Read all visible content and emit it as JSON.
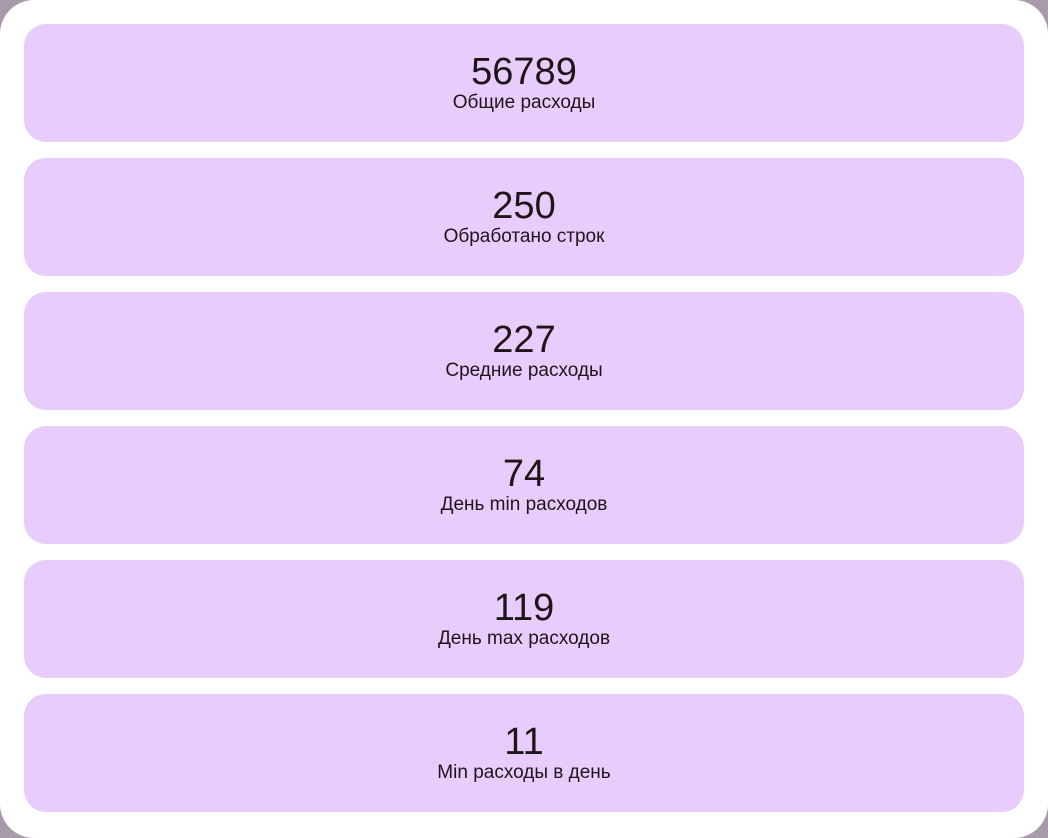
{
  "stats": [
    {
      "value": "56789",
      "label": "Общие расходы"
    },
    {
      "value": "250",
      "label": "Обработано строк"
    },
    {
      "value": "227",
      "label": "Средние расходы"
    },
    {
      "value": "74",
      "label": "День min расходов"
    },
    {
      "value": "119",
      "label": "День max расходов"
    },
    {
      "value": "11",
      "label": "Min расходы в день"
    }
  ],
  "colors": {
    "page_background": "#ffffff",
    "card_background": "#e8ccfc",
    "text": "#1e1518",
    "outer_background": "#a99aab"
  }
}
